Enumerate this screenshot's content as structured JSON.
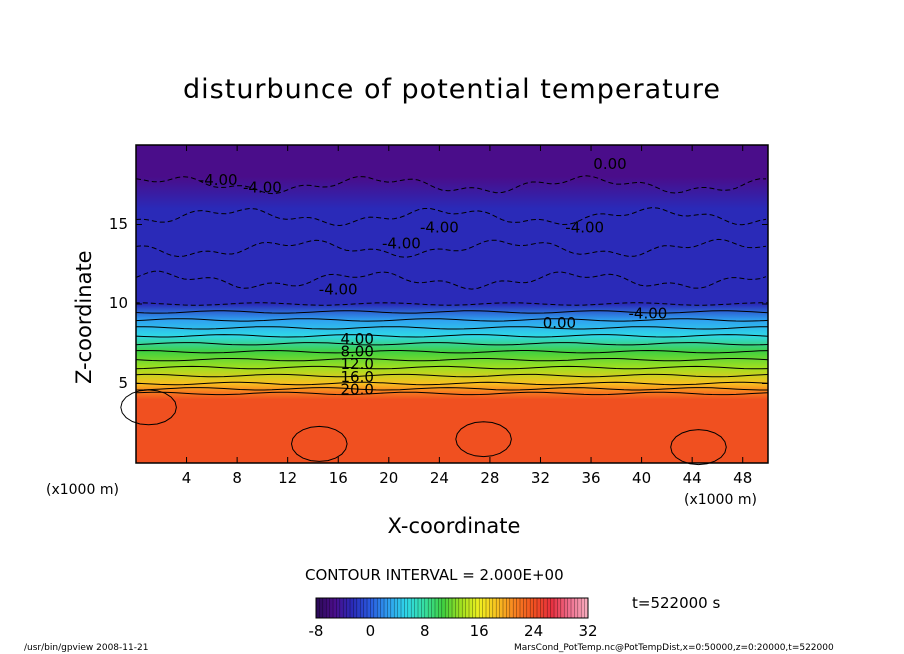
{
  "chart_data": {
    "type": "heatmap",
    "title": "disturbunce of potential temperature",
    "xlabel": "X-coordinate",
    "ylabel": "Z-coordinate",
    "x_unit": "(x1000 m)",
    "z_unit": "(x1000 m)",
    "xlim": [
      0,
      50
    ],
    "ylim": [
      0,
      20
    ],
    "x_ticks": [
      "4",
      "8",
      "12",
      "16",
      "20",
      "24",
      "28",
      "32",
      "36",
      "40",
      "44",
      "48"
    ],
    "y_ticks": [
      "5",
      "10",
      "15"
    ],
    "contour_labels": [
      "0.00",
      "0.00",
      "-4.00",
      "-4.00",
      "-4.00",
      "-4.00",
      "-4.00",
      "-4.00",
      "-4.00",
      "4.00",
      "8.00",
      "12.0",
      "16.0",
      "20.0"
    ],
    "contour_interval": "CONTOUR INTERVAL = 2.000E+00",
    "colorbar": {
      "min": -8,
      "max": 32,
      "ticks": [
        "-8",
        "0",
        "8",
        "16",
        "24",
        "32"
      ],
      "colors": [
        "#2a0a55",
        "#4a0d8a",
        "#2a2ab8",
        "#2a5be0",
        "#2fa0f0",
        "#2fd8e8",
        "#36e0a0",
        "#40d040",
        "#a0e020",
        "#f0f020",
        "#f8c020",
        "#f88020",
        "#f05020",
        "#e83040",
        "#f07090",
        "#f8b0c0"
      ]
    },
    "time": "t=522000 s",
    "vertical_profile": [
      {
        "z": 0,
        "value": 25
      },
      {
        "z": 4,
        "value": 25
      },
      {
        "z": 4.5,
        "value": 21
      },
      {
        "z": 5,
        "value": 18
      },
      {
        "z": 6,
        "value": 14
      },
      {
        "z": 7,
        "value": 10
      },
      {
        "z": 8,
        "value": 6
      },
      {
        "z": 9,
        "value": 2
      },
      {
        "z": 10,
        "value": -2
      },
      {
        "z": 12,
        "value": -4
      },
      {
        "z": 16,
        "value": -4
      },
      {
        "z": 18,
        "value": -5
      },
      {
        "z": 20,
        "value": -5
      }
    ]
  },
  "footer": {
    "left": "/usr/bin/gpview  2008-11-21",
    "right": "MarsCond_PotTemp.nc@PotTempDist,x=0:50000,z=0:20000,t=522000"
  }
}
